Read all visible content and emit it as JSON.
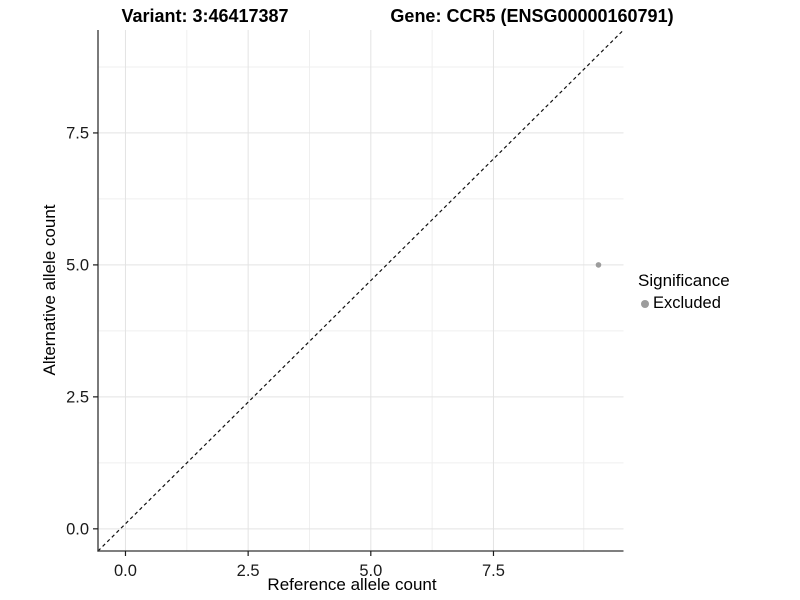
{
  "titles": {
    "variant": "Variant: 3:46417387",
    "gene": "Gene: CCR5 (ENSG00000160791)"
  },
  "chart_data": {
    "type": "scatter",
    "xlabel": "Reference allele count",
    "ylabel": "Alternative allele count",
    "xlim": [
      -0.56,
      10.15
    ],
    "ylim": [
      -0.42,
      9.45
    ],
    "x_ticks": {
      "values": [
        0,
        2.5,
        5,
        7.5
      ],
      "labels": [
        "0.0",
        "2.5",
        "5.0",
        "7.5"
      ]
    },
    "y_ticks": {
      "values": [
        0,
        2.5,
        5,
        7.5
      ],
      "labels": [
        "0.0",
        "2.5",
        "5.0",
        "7.5"
      ]
    },
    "x_minor_gridlines": [
      1.25,
      3.75,
      6.25,
      9.34
    ],
    "y_minor_gridlines": [
      1.25,
      3.75,
      6.25,
      8.75
    ],
    "grid": true,
    "identity_line": {
      "style": "dashed",
      "color": "#111111",
      "description": "y = x diagonal"
    },
    "series": [
      {
        "name": "Excluded",
        "color": "#9c9c9c",
        "points": [
          {
            "x": 9.64,
            "y": 5.0
          }
        ]
      }
    ],
    "legend": {
      "title": "Significance",
      "position": "right",
      "items": [
        {
          "label": "Excluded",
          "color": "#9c9c9c"
        }
      ]
    }
  },
  "colors": {
    "background": "#ffffff",
    "axis_line": "#333333",
    "tick_label": "#1a1a1a",
    "grid_major": "#e3e3e3",
    "grid_minor": "#efefef",
    "point": "#9c9c9c"
  }
}
